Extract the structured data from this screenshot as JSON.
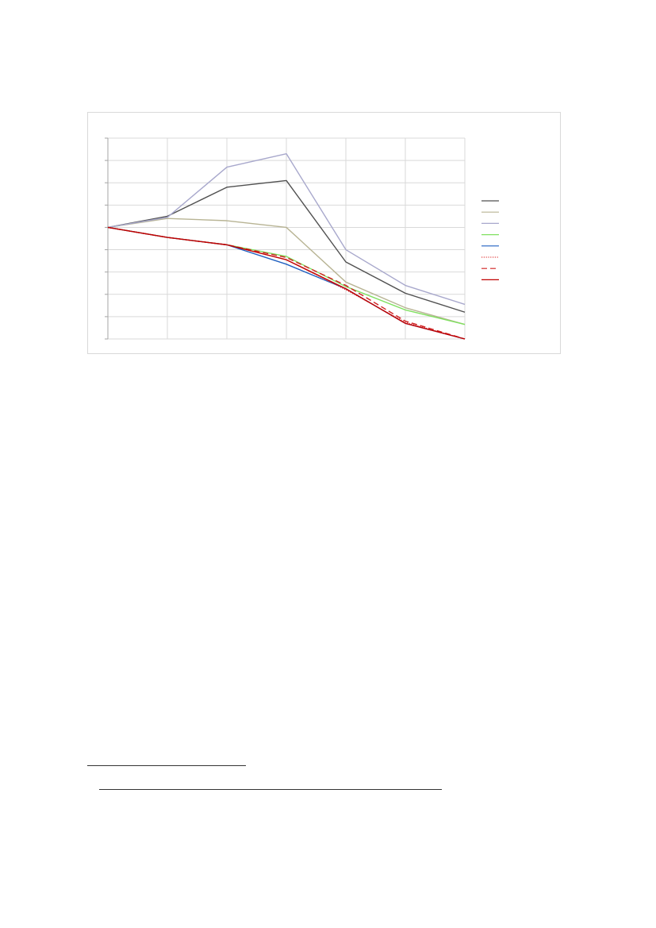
{
  "chart_data": {
    "type": "line",
    "title": "",
    "xlabel": "",
    "ylabel": "",
    "x": [
      0,
      1,
      2,
      3,
      4,
      5,
      6
    ],
    "ylim": [
      -5,
      4
    ],
    "grid": true,
    "tick_labels_visible": false,
    "legend_placement": "right",
    "series": [
      {
        "values": [
          0,
          0.5,
          1.8,
          2.1,
          -1.55,
          -2.95,
          -3.8
        ],
        "color": "#505050",
        "dash": "solid"
      },
      {
        "values": [
          0,
          0.4,
          0.3,
          0.0,
          -2.45,
          -3.6,
          -4.35
        ],
        "color": "#b8b494",
        "dash": "solid"
      },
      {
        "values": [
          0,
          0.45,
          2.7,
          3.3,
          -1.0,
          -2.6,
          -3.45
        ],
        "color": "#a8a8cc",
        "dash": "solid"
      },
      {
        "values": [
          0,
          -0.45,
          -0.78,
          -1.3,
          -2.65,
          -3.7,
          -4.35
        ],
        "color": "#80e060",
        "dash": "solid"
      },
      {
        "values": [
          0,
          -0.45,
          -0.78,
          -1.65,
          -2.75,
          -4.3,
          -5.0
        ],
        "color": "#2060c0",
        "dash": "solid"
      },
      {
        "values": [
          0,
          -0.45,
          -0.78,
          -1.45,
          -2.8,
          -4.25,
          -5.0
        ],
        "color": "#e04040",
        "dash": "dotted"
      },
      {
        "values": [
          0,
          -0.45,
          -0.78,
          -1.35,
          -2.6,
          -4.2,
          -5.0
        ],
        "color": "#d02020",
        "dash": "dashed"
      },
      {
        "values": [
          0,
          -0.45,
          -0.78,
          -1.45,
          -2.75,
          -4.3,
          -5.0
        ],
        "color": "#c00000",
        "dash": "solid"
      }
    ]
  }
}
